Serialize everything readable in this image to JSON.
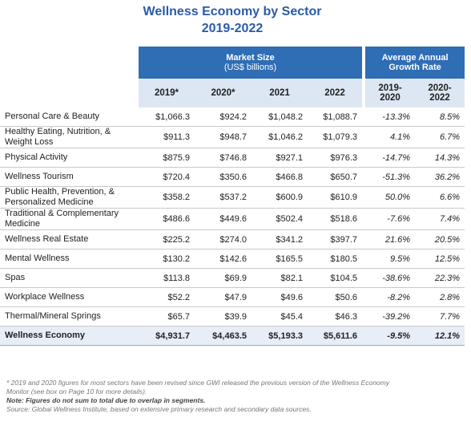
{
  "title": {
    "line1": "Wellness Economy by Sector",
    "line2": "2019-2022"
  },
  "header": {
    "market_size": "Market Size",
    "market_size_unit": "(US$ billions)",
    "growth": "Average Annual Growth Rate",
    "columns": [
      "2019*",
      "2020*",
      "2021",
      "2022",
      "2019-2020",
      "2020-2022"
    ]
  },
  "table": {
    "rows": [
      [
        "Personal Care & Beauty",
        "$1,066.3",
        "$924.2",
        "$1,048.2",
        "$1,088.7",
        "-13.3%",
        "8.5%"
      ],
      [
        "Healthy Eating, Nutrition, & Weight Loss",
        "$911.3",
        "$948.7",
        "$1,046.2",
        "$1,079.3",
        "4.1%",
        "6.7%"
      ],
      [
        "Physical Activity",
        "$875.9",
        "$746.8",
        "$927.1",
        "$976.3",
        "-14.7%",
        "14.3%"
      ],
      [
        "Wellness Tourism",
        "$720.4",
        "$350.6",
        "$466.8",
        "$650.7",
        "-51.3%",
        "36.2%"
      ],
      [
        "Public Health, Prevention, & Personalized Medicine",
        "$358.2",
        "$537.2",
        "$600.9",
        "$610.9",
        "50.0%",
        "6.6%"
      ],
      [
        "Traditional & Complementary Medicine",
        "$486.6",
        "$449.6",
        "$502.4",
        "$518.6",
        "-7.6%",
        "7.4%"
      ],
      [
        "Wellness Real Estate",
        "$225.2",
        "$274.0",
        "$341.2",
        "$397.7",
        "21.6%",
        "20.5%"
      ],
      [
        "Mental Wellness",
        "$130.2",
        "$142.6",
        "$165.5",
        "$180.5",
        "9.5%",
        "12.5%"
      ],
      [
        "Spas",
        "$113.8",
        "$69.9",
        "$82.1",
        "$104.5",
        "-38.6%",
        "22.3%"
      ],
      [
        "Workplace Wellness",
        "$52.2",
        "$47.9",
        "$49.6",
        "$50.6",
        "-8.2%",
        "2.8%"
      ],
      [
        "Thermal/Mineral Springs",
        "$65.7",
        "$39.9",
        "$45.4",
        "$46.3",
        "-39.2%",
        "7.7%"
      ]
    ],
    "total": [
      "Wellness Economy",
      "$4,931.7",
      "$4,463.5",
      "$5,193.3",
      "$5,611.6",
      "-9.5%",
      "12.1%"
    ]
  },
  "footnotes": [
    "* 2019 and 2020 figures for most sectors have been revised since GWI released the previous version of the Wellness Economy Monitor (see box on Page 10 for more details).",
    "Note: Figures do not sum to total due to overlap in segments.",
    "Source: Global Wellness Institute, based on extensive primary research and secondary data sources."
  ]
}
